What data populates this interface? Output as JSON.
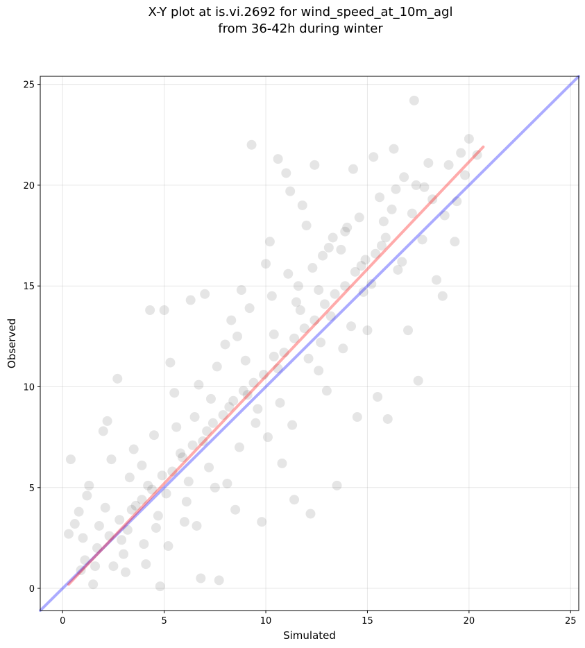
{
  "chart_data": {
    "type": "scatter",
    "title": "X-Y plot at is.vi.2692 for wind_speed_at_10m_agl",
    "subtitle": "from 36-42h during winter",
    "xlabel": "Simulated",
    "ylabel": "Observed",
    "xlim": [
      -1.1,
      25.4
    ],
    "ylim": [
      -1.1,
      25.4
    ],
    "xticks": [
      0,
      5,
      10,
      15,
      20,
      25
    ],
    "yticks": [
      0,
      5,
      10,
      15,
      20,
      25
    ],
    "grid": true,
    "point_color": "#000000",
    "series": [
      {
        "points": [
          [
            0.4,
            6.4
          ],
          [
            0.3,
            2.7
          ],
          [
            0.6,
            3.2
          ],
          [
            0.9,
            0.9
          ],
          [
            1.0,
            2.5
          ],
          [
            1.2,
            4.6
          ],
          [
            1.5,
            0.2
          ],
          [
            1.6,
            1.1
          ],
          [
            1.8,
            3.1
          ],
          [
            2.0,
            7.8
          ],
          [
            2.2,
            8.3
          ],
          [
            2.4,
            6.4
          ],
          [
            2.7,
            10.4
          ],
          [
            2.9,
            2.4
          ],
          [
            3.1,
            0.8
          ],
          [
            3.3,
            5.5
          ],
          [
            3.6,
            4.1
          ],
          [
            3.9,
            6.1
          ],
          [
            4.1,
            1.2
          ],
          [
            4.3,
            13.8
          ],
          [
            4.6,
            3.0
          ],
          [
            4.8,
            0.1
          ],
          [
            5.0,
            13.8
          ],
          [
            5.3,
            11.2
          ],
          [
            5.5,
            9.7
          ],
          [
            5.8,
            6.7
          ],
          [
            6.0,
            3.3
          ],
          [
            6.3,
            14.3
          ],
          [
            6.5,
            8.5
          ],
          [
            6.8,
            0.5
          ],
          [
            7.0,
            14.6
          ],
          [
            7.3,
            9.4
          ],
          [
            7.5,
            5.0
          ],
          [
            7.7,
            0.4
          ],
          [
            8.0,
            12.1
          ],
          [
            8.3,
            13.3
          ],
          [
            8.5,
            3.9
          ],
          [
            8.8,
            14.8
          ],
          [
            9.0,
            11.3
          ],
          [
            9.3,
            22.0
          ],
          [
            9.5,
            8.2
          ],
          [
            9.8,
            3.3
          ],
          [
            10.0,
            16.1
          ],
          [
            10.2,
            17.2
          ],
          [
            10.4,
            12.6
          ],
          [
            10.6,
            21.3
          ],
          [
            10.8,
            6.2
          ],
          [
            11.0,
            20.6
          ],
          [
            11.2,
            19.7
          ],
          [
            11.4,
            4.4
          ],
          [
            11.6,
            15.0
          ],
          [
            11.8,
            19.0
          ],
          [
            12.0,
            18.0
          ],
          [
            12.2,
            3.7
          ],
          [
            12.4,
            21.0
          ],
          [
            12.6,
            10.8
          ],
          [
            12.8,
            16.5
          ],
          [
            13.0,
            9.8
          ],
          [
            13.3,
            17.4
          ],
          [
            13.5,
            5.1
          ],
          [
            13.8,
            11.9
          ],
          [
            14.0,
            17.9
          ],
          [
            14.3,
            20.8
          ],
          [
            14.5,
            8.5
          ],
          [
            14.8,
            14.7
          ],
          [
            15.0,
            12.8
          ],
          [
            15.3,
            21.4
          ],
          [
            15.5,
            9.5
          ],
          [
            15.8,
            18.2
          ],
          [
            16.0,
            8.4
          ],
          [
            16.3,
            21.8
          ],
          [
            16.5,
            15.8
          ],
          [
            16.8,
            20.4
          ],
          [
            17.0,
            12.8
          ],
          [
            17.3,
            24.2
          ],
          [
            17.5,
            10.3
          ],
          [
            17.8,
            19.9
          ],
          [
            18.0,
            21.1
          ],
          [
            18.4,
            15.3
          ],
          [
            18.7,
            14.5
          ],
          [
            19.0,
            21.0
          ],
          [
            19.3,
            17.2
          ],
          [
            19.6,
            21.6
          ],
          [
            20.0,
            22.3
          ],
          [
            20.4,
            21.5
          ],
          [
            1.1,
            1.4
          ],
          [
            1.7,
            2.0
          ],
          [
            2.3,
            2.6
          ],
          [
            2.8,
            3.4
          ],
          [
            3.4,
            3.9
          ],
          [
            3.9,
            4.4
          ],
          [
            4.4,
            4.9
          ],
          [
            4.9,
            5.6
          ],
          [
            5.4,
            5.8
          ],
          [
            5.9,
            6.5
          ],
          [
            6.4,
            7.1
          ],
          [
            6.9,
            7.3
          ],
          [
            7.4,
            8.2
          ],
          [
            7.9,
            8.6
          ],
          [
            8.4,
            9.3
          ],
          [
            8.9,
            9.8
          ],
          [
            9.4,
            10.2
          ],
          [
            9.9,
            10.6
          ],
          [
            10.4,
            11.5
          ],
          [
            10.9,
            11.7
          ],
          [
            11.4,
            12.4
          ],
          [
            11.9,
            12.9
          ],
          [
            12.4,
            13.3
          ],
          [
            12.9,
            14.1
          ],
          [
            13.4,
            14.6
          ],
          [
            13.9,
            15.0
          ],
          [
            14.4,
            15.7
          ],
          [
            14.9,
            16.3
          ],
          [
            15.4,
            16.6
          ],
          [
            15.9,
            17.4
          ],
          [
            2.1,
            4.0
          ],
          [
            3.0,
            1.7
          ],
          [
            4.0,
            2.2
          ],
          [
            4.7,
            3.6
          ],
          [
            5.2,
            2.1
          ],
          [
            6.1,
            4.3
          ],
          [
            6.6,
            3.1
          ],
          [
            7.2,
            6.0
          ],
          [
            8.1,
            5.2
          ],
          [
            8.7,
            7.0
          ],
          [
            9.6,
            8.9
          ],
          [
            10.1,
            7.5
          ],
          [
            10.7,
            9.2
          ],
          [
            11.3,
            8.1
          ],
          [
            12.1,
            11.4
          ],
          [
            12.7,
            12.2
          ],
          [
            13.2,
            13.5
          ],
          [
            13.7,
            16.8
          ],
          [
            14.2,
            13.0
          ],
          [
            14.7,
            16.0
          ],
          [
            15.2,
            15.1
          ],
          [
            15.7,
            17.0
          ],
          [
            16.2,
            18.8
          ],
          [
            16.7,
            16.2
          ],
          [
            17.2,
            18.6
          ],
          [
            17.7,
            17.3
          ],
          [
            18.2,
            19.3
          ],
          [
            18.8,
            18.5
          ],
          [
            19.4,
            19.2
          ],
          [
            19.8,
            20.5
          ],
          [
            0.8,
            3.8
          ],
          [
            1.3,
            5.1
          ],
          [
            2.5,
            1.1
          ],
          [
            3.5,
            6.9
          ],
          [
            4.5,
            7.6
          ],
          [
            5.6,
            8.0
          ],
          [
            6.7,
            10.1
          ],
          [
            7.6,
            11.0
          ],
          [
            8.6,
            12.5
          ],
          [
            9.2,
            13.9
          ],
          [
            10.3,
            14.5
          ],
          [
            11.1,
            15.6
          ],
          [
            11.7,
            13.8
          ],
          [
            12.3,
            15.9
          ],
          [
            13.1,
            16.9
          ],
          [
            13.9,
            17.7
          ],
          [
            14.6,
            18.4
          ],
          [
            15.6,
            19.4
          ],
          [
            16.4,
            19.8
          ],
          [
            17.4,
            20.0
          ],
          [
            3.2,
            2.9
          ],
          [
            4.2,
            5.1
          ],
          [
            5.1,
            4.7
          ],
          [
            6.2,
            5.3
          ],
          [
            7.1,
            7.8
          ],
          [
            8.2,
            9.0
          ],
          [
            9.1,
            9.6
          ],
          [
            10.6,
            10.9
          ],
          [
            11.5,
            14.2
          ],
          [
            12.6,
            14.8
          ]
        ]
      }
    ],
    "lines": [
      {
        "name": "",
        "color": "#0000ff",
        "x": [
          -1.1,
          25.4
        ],
        "y": [
          -1.1,
          25.4
        ]
      },
      {
        "name": "",
        "color": "#ff0000",
        "x": [
          0.3,
          20.7
        ],
        "y": [
          0.2,
          21.9
        ]
      }
    ]
  }
}
